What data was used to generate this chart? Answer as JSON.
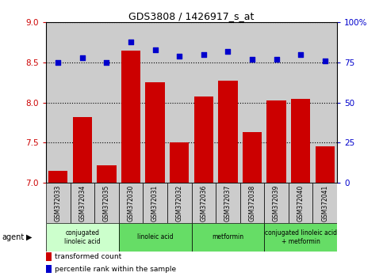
{
  "title": "GDS3808 / 1426917_s_at",
  "samples": [
    "GSM372033",
    "GSM372034",
    "GSM372035",
    "GSM372030",
    "GSM372031",
    "GSM372032",
    "GSM372036",
    "GSM372037",
    "GSM372038",
    "GSM372039",
    "GSM372040",
    "GSM372041"
  ],
  "red_values": [
    7.15,
    7.82,
    7.22,
    8.65,
    8.25,
    7.5,
    8.08,
    8.27,
    7.63,
    8.03,
    8.05,
    7.45
  ],
  "blue_values": [
    75,
    78,
    75,
    88,
    83,
    79,
    80,
    82,
    77,
    77,
    80,
    76
  ],
  "ylim_left": [
    7,
    9
  ],
  "ylim_right": [
    0,
    100
  ],
  "yticks_left": [
    7,
    7.5,
    8,
    8.5,
    9
  ],
  "yticks_right": [
    0,
    25,
    50,
    75,
    100
  ],
  "yticklabels_right": [
    "0",
    "25",
    "50",
    "75",
    "100%"
  ],
  "groups": [
    {
      "label": "conjugated\nlinoleic acid",
      "start": 0,
      "end": 3
    },
    {
      "label": "linoleic acid",
      "start": 3,
      "end": 6
    },
    {
      "label": "metformin",
      "start": 6,
      "end": 9
    },
    {
      "label": "conjugated linoleic acid\n+ metformin",
      "start": 9,
      "end": 12
    }
  ],
  "group_colors": [
    "#ccffcc",
    "#66dd66",
    "#66dd66",
    "#66dd66"
  ],
  "red_color": "#cc0000",
  "blue_color": "#0000cc",
  "bar_bg_color": "#cccccc",
  "plot_bg_color": "#ffffff",
  "legend_red_label": "transformed count",
  "legend_blue_label": "percentile rank within the sample",
  "agent_label": "agent"
}
